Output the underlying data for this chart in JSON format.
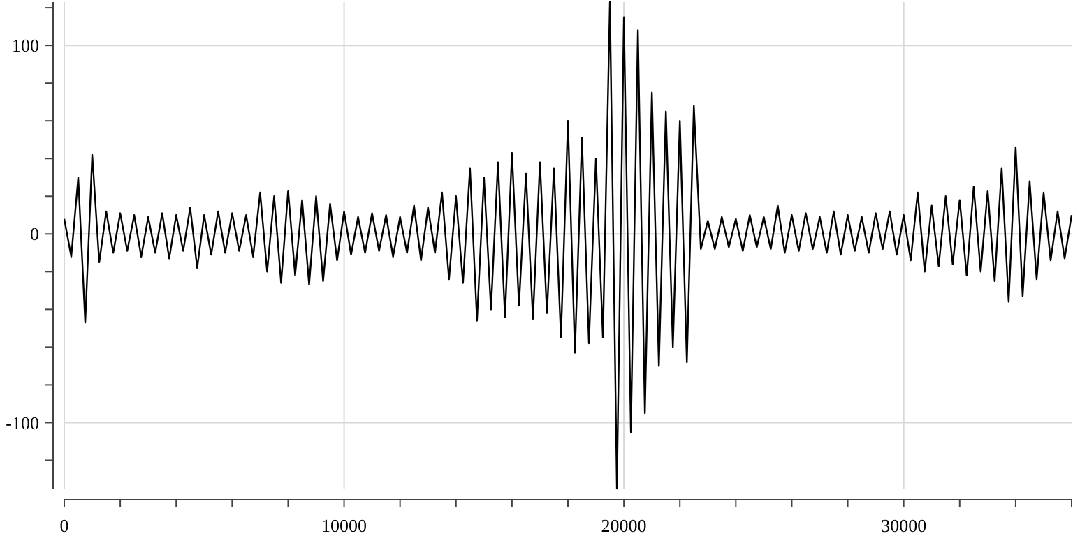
{
  "chart_data": {
    "type": "line",
    "xlim": [
      0,
      36000
    ],
    "ylim": [
      -135,
      123
    ],
    "xticks": [
      0,
      {
        "value": 2000,
        "label": null
      },
      {
        "value": 4000,
        "label": null
      },
      {
        "value": 6000,
        "label": null
      },
      {
        "value": 8000,
        "label": null
      },
      10000,
      {
        "value": 12000,
        "label": null
      },
      {
        "value": 14000,
        "label": null
      },
      {
        "value": 16000,
        "label": null
      },
      {
        "value": 18000,
        "label": null
      },
      20000,
      {
        "value": 22000,
        "label": null
      },
      {
        "value": 24000,
        "label": null
      },
      {
        "value": 26000,
        "label": null
      },
      {
        "value": 28000,
        "label": null
      },
      30000,
      {
        "value": 32000,
        "label": null
      },
      {
        "value": 34000,
        "label": null
      },
      {
        "value": 36000,
        "label": null
      }
    ],
    "yticks": [
      {
        "value": -120,
        "label": null
      },
      -100,
      {
        "value": -80,
        "label": null
      },
      {
        "value": -60,
        "label": null
      },
      {
        "value": -40,
        "label": null
      },
      {
        "value": -20,
        "label": null
      },
      0,
      {
        "value": 20,
        "label": null
      },
      {
        "value": 40,
        "label": null
      },
      {
        "value": 60,
        "label": null
      },
      {
        "value": 80,
        "label": null
      },
      100,
      {
        "value": 120,
        "label": null
      }
    ],
    "grid": true,
    "marker": "none",
    "line_style": "solid",
    "x": [
      0,
      250,
      500,
      750,
      1000,
      1250,
      1500,
      1750,
      2000,
      2250,
      2500,
      2750,
      3000,
      3250,
      3500,
      3750,
      4000,
      4250,
      4500,
      4750,
      5000,
      5250,
      5500,
      5750,
      6000,
      6250,
      6500,
      6750,
      7000,
      7250,
      7500,
      7750,
      8000,
      8250,
      8500,
      8750,
      9000,
      9250,
      9500,
      9750,
      10000,
      10250,
      10500,
      10750,
      11000,
      11250,
      11500,
      11750,
      12000,
      12250,
      12500,
      12750,
      13000,
      13250,
      13500,
      13750,
      14000,
      14250,
      14500,
      14750,
      15000,
      15250,
      15500,
      15750,
      16000,
      16250,
      16500,
      16750,
      17000,
      17250,
      17500,
      17750,
      18000,
      18250,
      18500,
      18750,
      19000,
      19250,
      19500,
      19750,
      20000,
      20250,
      20500,
      20750,
      21000,
      21250,
      21500,
      21750,
      22000,
      22250,
      22500,
      22750,
      23000,
      23250,
      23500,
      23750,
      24000,
      24250,
      24500,
      24750,
      25000,
      25250,
      25500,
      25750,
      26000,
      26250,
      26500,
      26750,
      27000,
      27250,
      27500,
      27750,
      28000,
      28250,
      28500,
      28750,
      29000,
      29250,
      29500,
      29750,
      30000,
      30250,
      30500,
      30750,
      31000,
      31250,
      31500,
      31750,
      32000,
      32250,
      32500,
      32750,
      33000,
      33250,
      33500,
      33750,
      34000,
      34250,
      34500,
      34750,
      35000,
      35250,
      35500,
      35750,
      36000
    ],
    "series": [
      {
        "color": "#000000",
        "values": [
          8,
          -12,
          30,
          -47,
          42,
          -15,
          12,
          -10,
          11,
          -9,
          10,
          -12,
          9,
          -10,
          11,
          -13,
          10,
          -9,
          14,
          -18,
          10,
          -11,
          12,
          -10,
          11,
          -9,
          10,
          -12,
          22,
          -20,
          20,
          -26,
          23,
          -22,
          18,
          -27,
          20,
          -25,
          16,
          -14,
          12,
          -11,
          9,
          -10,
          11,
          -9,
          10,
          -12,
          9,
          -10,
          15,
          -14,
          14,
          -10,
          22,
          -24,
          20,
          -26,
          35,
          -46,
          30,
          -40,
          38,
          -44,
          43,
          -38,
          32,
          -45,
          38,
          -42,
          35,
          -55,
          60,
          -63,
          51,
          -58,
          40,
          -55,
          123,
          -135,
          115,
          -105,
          108,
          -95,
          75,
          -70,
          65,
          -60,
          60,
          -68,
          68,
          -8,
          7,
          -8,
          9,
          -7,
          8,
          -9,
          10,
          -7,
          9,
          -8,
          15,
          -10,
          10,
          -9,
          11,
          -8,
          9,
          -10,
          12,
          -11,
          10,
          -9,
          9,
          -10,
          11,
          -8,
          12,
          -11,
          10,
          -14,
          22,
          -20,
          15,
          -17,
          20,
          -16,
          18,
          -22,
          25,
          -20,
          23,
          -25,
          35,
          -36,
          46,
          -33,
          28,
          -24,
          22,
          -14,
          12,
          -13,
          10
        ]
      }
    ]
  }
}
